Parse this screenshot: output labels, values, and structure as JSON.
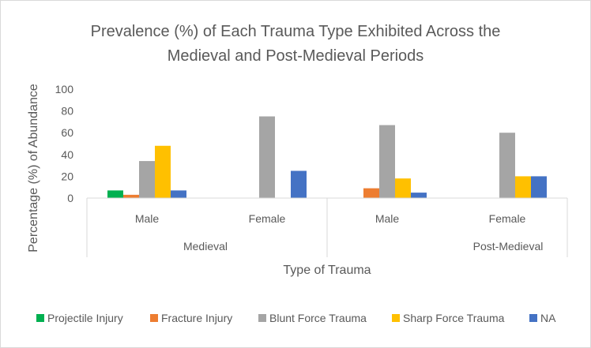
{
  "chart_data": {
    "type": "bar",
    "title_lines": [
      "Prevalence (%) of Each Trauma Type Exhibited Across the",
      "Medieval and Post-Medieval Periods"
    ],
    "xlabel": "Type of Trauma",
    "ylabel": "Percentage (%) of Abundance",
    "ylim": [
      0,
      100
    ],
    "yticks": [
      0,
      20,
      40,
      60,
      80,
      100
    ],
    "groups": [
      {
        "label": "Medieval",
        "categories": [
          "Male",
          "Female"
        ]
      },
      {
        "label": "Post-Medieval",
        "categories": [
          "Male",
          "Female"
        ]
      }
    ],
    "series": [
      {
        "name": "Projectile Injury",
        "color": "#00b050",
        "values": [
          7,
          0,
          0,
          0
        ]
      },
      {
        "name": "Fracture Injury",
        "color": "#ed7d31",
        "values": [
          3,
          0,
          9,
          0
        ]
      },
      {
        "name": "Blunt Force Trauma",
        "color": "#a5a5a5",
        "values": [
          34,
          75,
          67,
          60
        ]
      },
      {
        "name": "Sharp Force Trauma",
        "color": "#ffc000",
        "values": [
          48,
          0,
          18,
          20
        ]
      },
      {
        "name": "NA",
        "color": "#4472c4",
        "values": [
          7,
          25,
          5,
          20
        ]
      }
    ],
    "grid": false,
    "legend_position": "bottom"
  }
}
